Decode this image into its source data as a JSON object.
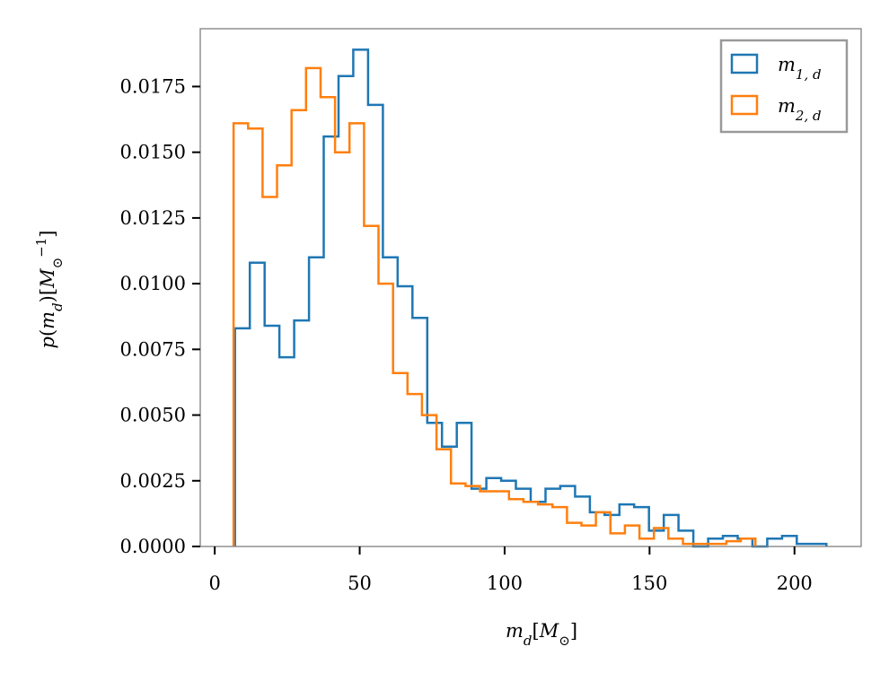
{
  "chart_data": {
    "type": "histogram",
    "xlabel": "m_d[M_⊙]",
    "ylabel": "p(m_d)[M_⊙^-1]",
    "xlim": [
      -5,
      223
    ],
    "ylim": [
      0,
      0.0197
    ],
    "x_ticks": [
      "0",
      "50",
      "100",
      "150",
      "200"
    ],
    "y_ticks": [
      "0.0000",
      "0.0025",
      "0.0050",
      "0.0075",
      "0.0100",
      "0.0125",
      "0.0150",
      "0.0175"
    ],
    "legend_position": "top-right",
    "grid": false,
    "series": [
      {
        "name": "m_{1,d}",
        "color": "#1f77b4",
        "bin_start": 7,
        "bin_width": 5.1,
        "values": [
          0.0083,
          0.0108,
          0.0084,
          0.0072,
          0.0086,
          0.011,
          0.0156,
          0.0179,
          0.0189,
          0.0168,
          0.011,
          0.0099,
          0.0087,
          0.0047,
          0.0038,
          0.0047,
          0.0022,
          0.0026,
          0.0025,
          0.0022,
          0.0017,
          0.0022,
          0.0023,
          0.0019,
          0.0013,
          0.0012,
          0.0016,
          0.0015,
          0.0006,
          0.0012,
          0.0006,
          0.0,
          0.0003,
          0.0004,
          0.0003,
          0.0,
          0.0003,
          0.0004,
          0.0001,
          0.0001
        ]
      },
      {
        "name": "m_{2,d}",
        "color": "#ff7f0e",
        "bin_start": 6.5,
        "bin_width": 5.0,
        "values": [
          0.0161,
          0.0159,
          0.0133,
          0.0145,
          0.0166,
          0.0182,
          0.0171,
          0.015,
          0.0161,
          0.0122,
          0.01,
          0.0066,
          0.0058,
          0.005,
          0.0037,
          0.0024,
          0.0023,
          0.0021,
          0.0021,
          0.0018,
          0.0017,
          0.0016,
          0.0015,
          0.0009,
          0.0008,
          0.0013,
          0.0005,
          0.0008,
          0.0003,
          0.0007,
          0.0003,
          0.0001,
          0.0001,
          0.0001,
          0.0002,
          0.0003
        ]
      }
    ]
  }
}
